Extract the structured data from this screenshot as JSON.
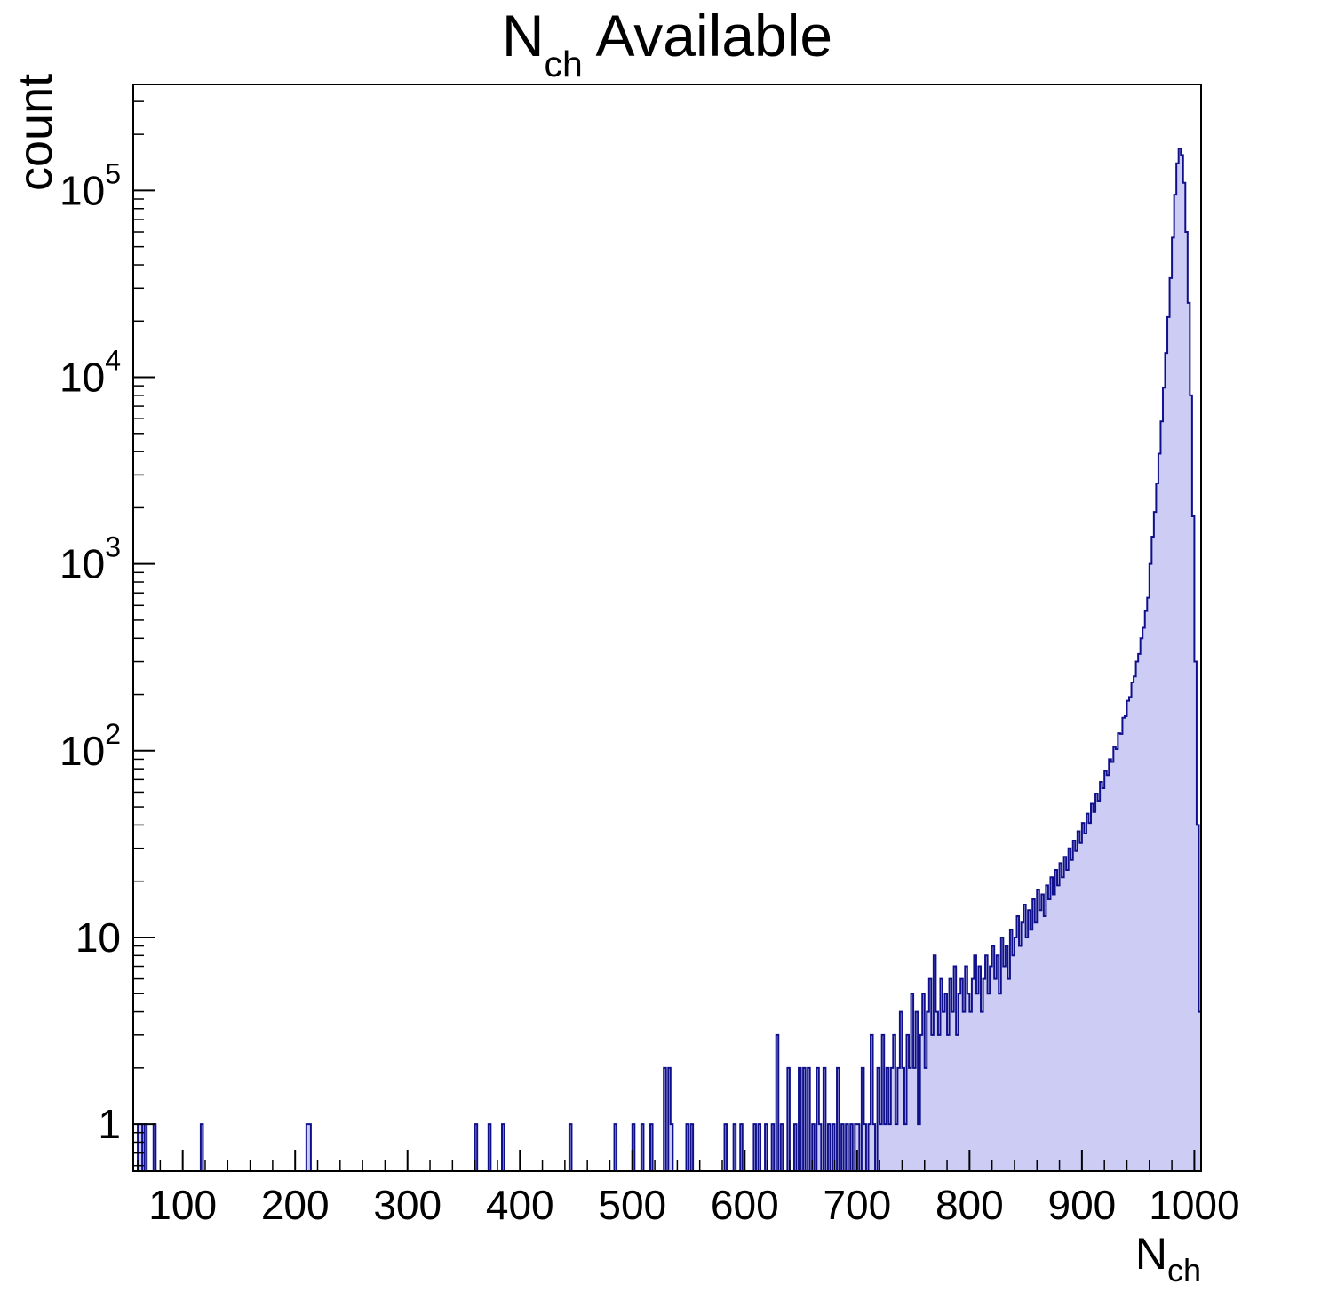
{
  "title_rich": {
    "main": "N",
    "sub": "ch",
    "rest": " Available"
  },
  "xlabel_rich": {
    "main": "N",
    "sub": "ch"
  },
  "style": {
    "line_color": "#10108c",
    "fill_color": "#ccccf5",
    "axis_color": "#000000",
    "text_color": "#000000",
    "background": "#ffffff"
  },
  "chart_data": {
    "type": "bar",
    "subtype": "histogram-log-y",
    "title": "N_ch Available",
    "xlabel": "N_ch",
    "ylabel": "count",
    "xlim": [
      56,
      1006
    ],
    "ylim": [
      0.56,
      370000
    ],
    "yscale": "log",
    "grid": false,
    "legend": "none",
    "x_major_ticks": [
      100,
      200,
      300,
      400,
      500,
      600,
      700,
      800,
      900,
      1000
    ],
    "x_minor_step": 20,
    "y_major_ticks": [
      1,
      10,
      100,
      1000,
      10000,
      100000
    ],
    "bin_width": 2,
    "peak": {
      "x": 986,
      "count": 168000
    },
    "bins": [
      [
        60,
        1
      ],
      [
        62,
        1
      ],
      [
        66,
        1
      ],
      [
        74,
        1
      ],
      [
        116,
        1
      ],
      [
        210,
        1
      ],
      [
        212,
        1
      ],
      [
        360,
        1
      ],
      [
        372,
        1
      ],
      [
        384,
        1
      ],
      [
        444,
        1
      ],
      [
        484,
        1
      ],
      [
        500,
        1
      ],
      [
        508,
        1
      ],
      [
        516,
        1
      ],
      [
        528,
        2
      ],
      [
        532,
        2
      ],
      [
        534,
        1
      ],
      [
        548,
        1
      ],
      [
        552,
        1
      ],
      [
        582,
        1
      ],
      [
        590,
        1
      ],
      [
        596,
        1
      ],
      [
        608,
        1
      ],
      [
        612,
        1
      ],
      [
        618,
        1
      ],
      [
        624,
        1
      ],
      [
        628,
        3
      ],
      [
        632,
        1
      ],
      [
        638,
        2
      ],
      [
        644,
        1
      ],
      [
        648,
        2
      ],
      [
        652,
        2
      ],
      [
        656,
        2
      ],
      [
        660,
        1
      ],
      [
        664,
        2
      ],
      [
        666,
        1
      ],
      [
        670,
        2
      ],
      [
        674,
        1
      ],
      [
        678,
        1
      ],
      [
        682,
        2
      ],
      [
        686,
        1
      ],
      [
        690,
        1
      ],
      [
        694,
        1
      ],
      [
        698,
        1
      ],
      [
        700,
        1
      ],
      [
        704,
        2
      ],
      [
        706,
        1
      ],
      [
        710,
        1
      ],
      [
        712,
        3
      ],
      [
        714,
        1
      ],
      [
        718,
        2
      ],
      [
        720,
        1
      ],
      [
        722,
        3
      ],
      [
        724,
        1
      ],
      [
        726,
        2
      ],
      [
        728,
        1
      ],
      [
        730,
        2
      ],
      [
        732,
        3
      ],
      [
        734,
        1
      ],
      [
        736,
        2
      ],
      [
        738,
        4
      ],
      [
        740,
        2
      ],
      [
        742,
        1
      ],
      [
        744,
        3
      ],
      [
        746,
        2
      ],
      [
        748,
        5
      ],
      [
        750,
        2
      ],
      [
        752,
        4
      ],
      [
        754,
        1
      ],
      [
        756,
        3
      ],
      [
        758,
        5
      ],
      [
        760,
        2
      ],
      [
        762,
        4
      ],
      [
        764,
        6
      ],
      [
        766,
        3
      ],
      [
        768,
        8
      ],
      [
        770,
        4
      ],
      [
        772,
        3
      ],
      [
        774,
        6
      ],
      [
        776,
        4
      ],
      [
        778,
        5
      ],
      [
        780,
        3
      ],
      [
        782,
        6
      ],
      [
        784,
        4
      ],
      [
        786,
        7
      ],
      [
        788,
        3
      ],
      [
        790,
        5
      ],
      [
        792,
        6
      ],
      [
        794,
        4
      ],
      [
        796,
        7
      ],
      [
        798,
        5
      ],
      [
        800,
        4
      ],
      [
        802,
        6
      ],
      [
        804,
        8
      ],
      [
        806,
        5
      ],
      [
        808,
        7
      ],
      [
        810,
        4
      ],
      [
        812,
        6
      ],
      [
        814,
        8
      ],
      [
        816,
        5
      ],
      [
        818,
        7
      ],
      [
        820,
        9
      ],
      [
        822,
        6
      ],
      [
        824,
        8
      ],
      [
        826,
        5
      ],
      [
        828,
        10
      ],
      [
        830,
        7
      ],
      [
        832,
        9
      ],
      [
        834,
        6
      ],
      [
        836,
        11
      ],
      [
        838,
        8
      ],
      [
        840,
        10
      ],
      [
        842,
        13
      ],
      [
        844,
        9
      ],
      [
        846,
        12
      ],
      [
        848,
        15
      ],
      [
        850,
        10
      ],
      [
        852,
        14
      ],
      [
        854,
        11
      ],
      [
        856,
        16
      ],
      [
        858,
        12
      ],
      [
        860,
        18
      ],
      [
        862,
        14
      ],
      [
        864,
        17
      ],
      [
        866,
        13
      ],
      [
        868,
        19
      ],
      [
        870,
        16
      ],
      [
        872,
        21
      ],
      [
        874,
        17
      ],
      [
        876,
        23
      ],
      [
        878,
        19
      ],
      [
        880,
        25
      ],
      [
        882,
        21
      ],
      [
        884,
        27
      ],
      [
        886,
        23
      ],
      [
        888,
        30
      ],
      [
        890,
        26
      ],
      [
        892,
        33
      ],
      [
        894,
        29
      ],
      [
        896,
        37
      ],
      [
        898,
        32
      ],
      [
        900,
        41
      ],
      [
        902,
        36
      ],
      [
        904,
        46
      ],
      [
        906,
        41
      ],
      [
        908,
        52
      ],
      [
        910,
        47
      ],
      [
        912,
        59
      ],
      [
        914,
        54
      ],
      [
        916,
        68
      ],
      [
        918,
        63
      ],
      [
        920,
        78
      ],
      [
        922,
        74
      ],
      [
        924,
        90
      ],
      [
        926,
        87
      ],
      [
        928,
        105
      ],
      [
        930,
        102
      ],
      [
        932,
        124
      ],
      [
        934,
        123
      ],
      [
        936,
        150
      ],
      [
        938,
        153
      ],
      [
        940,
        185
      ],
      [
        942,
        194
      ],
      [
        944,
        232
      ],
      [
        946,
        250
      ],
      [
        948,
        300
      ],
      [
        950,
        330
      ],
      [
        952,
        400
      ],
      [
        954,
        455
      ],
      [
        956,
        560
      ],
      [
        958,
        660
      ],
      [
        960,
        1000
      ],
      [
        962,
        1400
      ],
      [
        964,
        1900
      ],
      [
        966,
        2700
      ],
      [
        968,
        3900
      ],
      [
        970,
        5800
      ],
      [
        972,
        8800
      ],
      [
        974,
        13500
      ],
      [
        976,
        21000
      ],
      [
        978,
        34000
      ],
      [
        980,
        56000
      ],
      [
        982,
        95000
      ],
      [
        984,
        140000
      ],
      [
        986,
        168000
      ],
      [
        988,
        155000
      ],
      [
        990,
        110000
      ],
      [
        992,
        60000
      ],
      [
        994,
        25000
      ],
      [
        996,
        8000
      ],
      [
        998,
        1800
      ],
      [
        1000,
        300
      ],
      [
        1002,
        40
      ],
      [
        1004,
        4
      ]
    ]
  }
}
